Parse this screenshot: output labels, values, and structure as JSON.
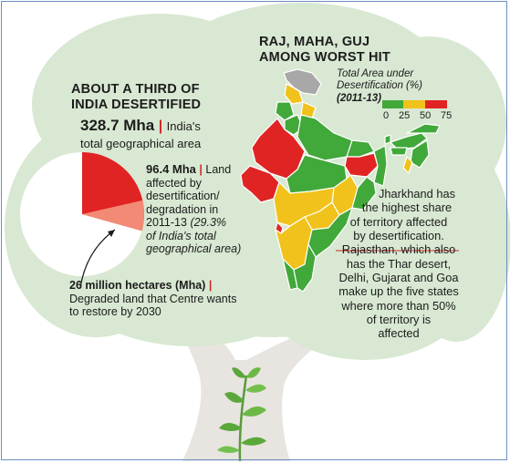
{
  "left_panel": {
    "title_line1": "ABOUT A THIRD OF",
    "title_line2": "INDIA DESERTIFIED",
    "stat1": {
      "value": "328.7 Mha",
      "sep": "|",
      "desc_line1": "India's",
      "desc_line2": "total geographical area"
    },
    "stat2": {
      "value": "96.4 Mha",
      "sep": "|",
      "line1": "Land",
      "line2": "affected by",
      "line3": "desertification/",
      "line4": "degradation in",
      "line5a": "2011-13",
      "line5b": "(29.3%",
      "line6": "of India's total",
      "line7": "geographical area)"
    },
    "stat3": {
      "value": "26 million hectares (Mha)",
      "sep": "|",
      "line1": "Degraded land that Centre wants",
      "line2": "to restore by 2030"
    }
  },
  "pie_data": {
    "total_mha": 328.7,
    "affected_mha": 96.4,
    "restore_mha": 26,
    "colors": {
      "affected": "#e02424",
      "restore": "#f28a76",
      "rest": "#ffffff"
    }
  },
  "map_panel": {
    "title_line1": "RAJ, MAHA, GUJ",
    "title_line2": "AMONG WORST HIT",
    "legend_title_line1": "Total Area under",
    "legend_title_line2": "Desertification (%)",
    "legend_period": "(2011-13)",
    "legend_ticks": [
      "0",
      "25",
      "50",
      "75"
    ],
    "legend_colors": [
      "#41a83a",
      "#f1c21b",
      "#e02424"
    ],
    "no_data_color": "#a8a8a8"
  },
  "annotation": {
    "line1": "Jharkhand has",
    "line2": "the highest share",
    "line3": "of territory affected",
    "line4": "by desertification.",
    "line5": "Rajasthan, which also",
    "line6": "has the Thar desert,",
    "line7": "Delhi, Gujarat and Goa",
    "line8": "make up the five states",
    "line9": "where more than 50%",
    "line10": "of territory is",
    "line11": "affected"
  },
  "colors": {
    "canopy": "#d8e8d2",
    "trunk": "#e7e4e0",
    "leaf": "#5aa83a",
    "accent_red": "#d12a2a"
  }
}
